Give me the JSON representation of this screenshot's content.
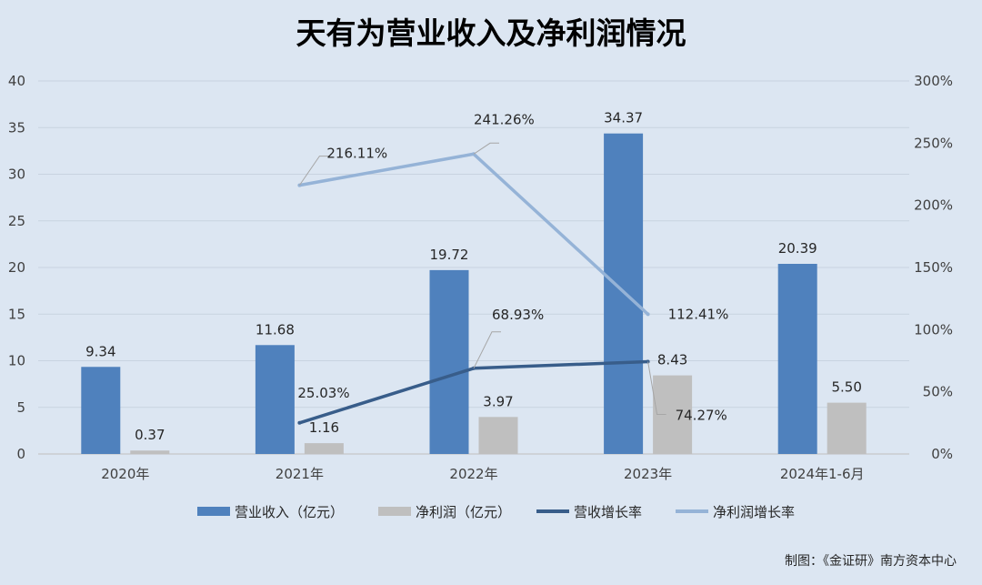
{
  "chart_data": {
    "type": "bar",
    "title": "天有为营业收入及净利润情况",
    "categories": [
      "2020年",
      "2021年",
      "2022年",
      "2023年",
      "2024年1-6月"
    ],
    "ylim": [
      0,
      40
    ],
    "yticks": [
      "0",
      "5",
      "10",
      "15",
      "20",
      "25",
      "30",
      "35",
      "40"
    ],
    "y2lim": [
      0,
      3
    ],
    "y2ticks": [
      "0%",
      "50%",
      "100%",
      "150%",
      "200%",
      "250%",
      "300%"
    ],
    "grid": true,
    "legend_position": "bottom",
    "series": [
      {
        "name": "营业收入（亿元）",
        "kind": "bar",
        "axis": "left",
        "color": "#4f81bd",
        "values": [
          9.34,
          11.68,
          19.72,
          34.37,
          20.39
        ],
        "labels": [
          "9.34",
          "11.68",
          "19.72",
          "34.37",
          "20.39"
        ]
      },
      {
        "name": "净利润（亿元）",
        "kind": "bar",
        "axis": "left",
        "color": "#bfbfbf",
        "values": [
          0.37,
          1.16,
          3.97,
          8.43,
          5.5
        ],
        "labels": [
          "0.37",
          "1.16",
          "3.97",
          "8.43",
          "5.50"
        ]
      },
      {
        "name": "营收增长率",
        "kind": "line",
        "axis": "right",
        "color": "#385d8a",
        "values": [
          null,
          0.2503,
          0.6893,
          0.7427,
          null
        ],
        "labels": [
          null,
          "25.03%",
          "68.93%",
          "74.27%",
          null
        ]
      },
      {
        "name": "净利润增长率",
        "kind": "line",
        "axis": "right",
        "color": "#95b3d7",
        "values": [
          null,
          2.1611,
          2.4126,
          1.1241,
          null
        ],
        "labels": [
          null,
          "216.11%",
          "241.26%",
          "112.41%",
          null
        ]
      }
    ]
  },
  "credit": "制图：《金证研》南方资本中心"
}
